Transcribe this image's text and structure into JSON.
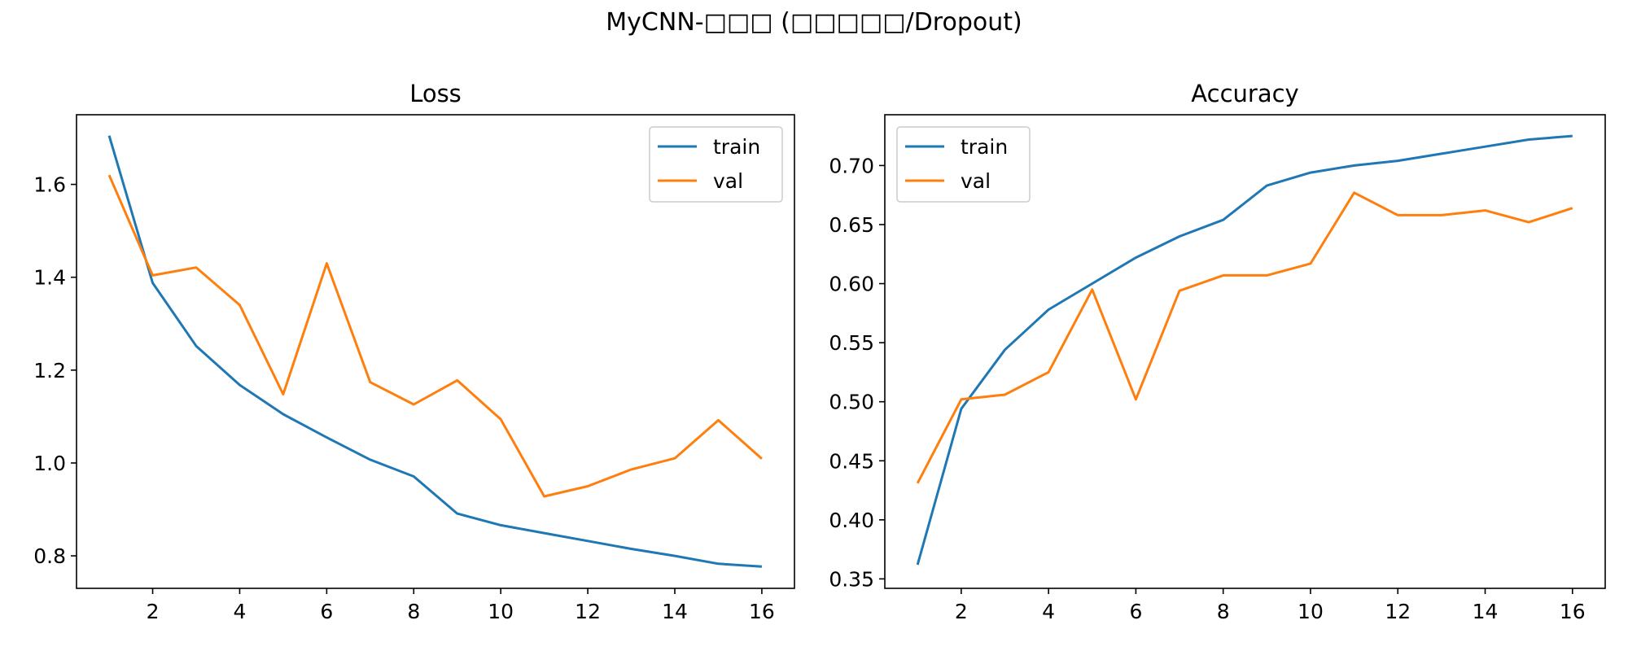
{
  "figure": {
    "title": "MyCNN-□□□ (□□□□□/Dropout)"
  },
  "colors": {
    "train": "#1f77b4",
    "val": "#ff7f0e",
    "axis": "#000000",
    "legend_border": "#cccccc"
  },
  "chart_data": [
    {
      "type": "line",
      "title": "Loss",
      "xlabel": "",
      "ylabel": "",
      "x": [
        1,
        2,
        3,
        4,
        5,
        6,
        7,
        8,
        9,
        10,
        11,
        12,
        13,
        14,
        15,
        16
      ],
      "xlim": [
        0.25,
        16.75
      ],
      "ylim": [
        0.73,
        1.75
      ],
      "xticks": [
        2,
        4,
        6,
        8,
        10,
        12,
        14,
        16
      ],
      "xtick_labels": [
        "2",
        "4",
        "6",
        "8",
        "10",
        "12",
        "14",
        "16"
      ],
      "yticks": [
        0.8,
        1.0,
        1.2,
        1.4,
        1.6
      ],
      "ytick_labels": [
        "0.8",
        "1.0",
        "1.2",
        "1.4",
        "1.6"
      ],
      "legend_position": "top-right",
      "grid": false,
      "series": [
        {
          "name": "train",
          "values": [
            1.705,
            1.388,
            1.252,
            1.168,
            1.105,
            1.055,
            1.007,
            0.971,
            0.891,
            0.866,
            0.849,
            0.832,
            0.815,
            0.8,
            0.783,
            0.777
          ]
        },
        {
          "name": "val",
          "values": [
            1.62,
            1.404,
            1.421,
            1.34,
            1.148,
            1.43,
            1.174,
            1.126,
            1.178,
            1.094,
            0.928,
            0.95,
            0.986,
            1.01,
            1.092,
            1.009
          ]
        }
      ]
    },
    {
      "type": "line",
      "title": "Accuracy",
      "xlabel": "",
      "ylabel": "",
      "x": [
        1,
        2,
        3,
        4,
        5,
        6,
        7,
        8,
        9,
        10,
        11,
        12,
        13,
        14,
        15,
        16
      ],
      "xlim": [
        0.25,
        16.75
      ],
      "ylim": [
        0.342,
        0.743
      ],
      "xticks": [
        2,
        4,
        6,
        8,
        10,
        12,
        14,
        16
      ],
      "xtick_labels": [
        "2",
        "4",
        "6",
        "8",
        "10",
        "12",
        "14",
        "16"
      ],
      "yticks": [
        0.35,
        0.4,
        0.45,
        0.5,
        0.55,
        0.6,
        0.65,
        0.7
      ],
      "ytick_labels": [
        "0.35",
        "0.40",
        "0.45",
        "0.50",
        "0.55",
        "0.60",
        "0.65",
        "0.70"
      ],
      "legend_position": "top-left",
      "grid": false,
      "series": [
        {
          "name": "train",
          "values": [
            0.362,
            0.494,
            0.544,
            0.578,
            0.6,
            0.622,
            0.64,
            0.654,
            0.683,
            0.694,
            0.7,
            0.704,
            0.71,
            0.716,
            0.722,
            0.725
          ]
        },
        {
          "name": "val",
          "values": [
            0.431,
            0.502,
            0.506,
            0.525,
            0.595,
            0.502,
            0.594,
            0.607,
            0.607,
            0.617,
            0.677,
            0.658,
            0.658,
            0.662,
            0.652,
            0.664
          ]
        }
      ]
    }
  ]
}
